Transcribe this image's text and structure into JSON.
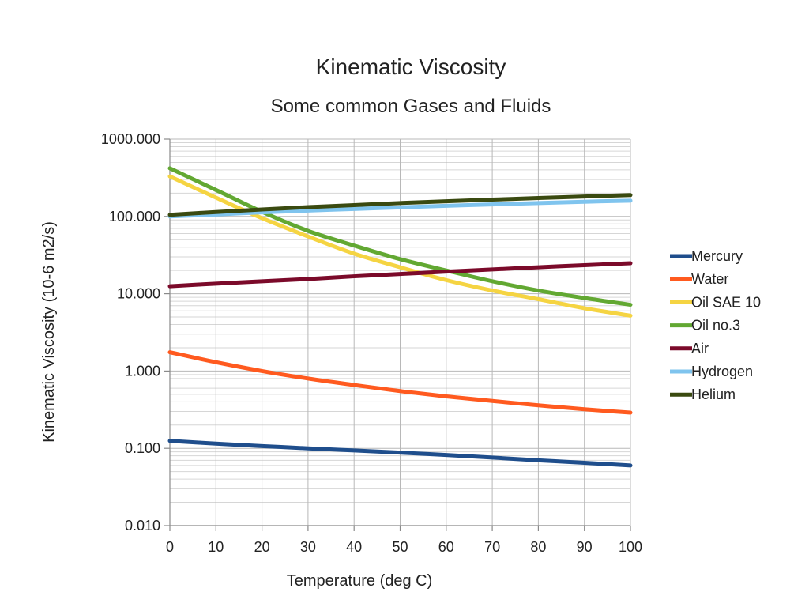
{
  "chart_data": {
    "type": "line",
    "title": "Kinematic Viscosity",
    "subtitle": "Some common Gases and Fluids",
    "xlabel": "Temperature (deg C)",
    "ylabel": "Kinematic Viscosity (10-6 m2/s)",
    "xlim": [
      0,
      100
    ],
    "ylim": [
      0.01,
      1000
    ],
    "yscale": "log",
    "grid": true,
    "legend_position": "right",
    "x_ticks": [
      "0",
      "10",
      "20",
      "30",
      "40",
      "50",
      "60",
      "70",
      "80",
      "90",
      "100"
    ],
    "y_ticks": [
      "0.010",
      "0.100",
      "1.000",
      "10.000",
      "100.000",
      "1000.000"
    ],
    "x": [
      0,
      10,
      20,
      30,
      40,
      50,
      60,
      70,
      80,
      90,
      100
    ],
    "series": [
      {
        "name": "Mercury",
        "color": "#1f4e8c",
        "values": [
          0.125,
          0.115,
          0.107,
          0.1,
          0.094,
          0.088,
          0.082,
          0.076,
          0.07,
          0.065,
          0.06
        ]
      },
      {
        "name": "Water",
        "color": "#ff5a1f",
        "values": [
          1.75,
          1.3,
          1.0,
          0.8,
          0.66,
          0.55,
          0.47,
          0.41,
          0.36,
          0.32,
          0.29
        ]
      },
      {
        "name": "Oil SAE 10",
        "color": "#f5d442",
        "values": [
          330,
          175,
          95,
          55,
          33,
          22,
          15,
          11,
          8.5,
          6.5,
          5.2
        ]
      },
      {
        "name": "Oil no.3",
        "color": "#62a832",
        "values": [
          420,
          220,
          115,
          65,
          42,
          28,
          20,
          14.5,
          11,
          8.8,
          7.2
        ]
      },
      {
        "name": "Air",
        "color": "#7b0a2a",
        "values": [
          12.5,
          13.5,
          14.5,
          15.5,
          16.8,
          18,
          19.3,
          20.6,
          22,
          23.4,
          24.8
        ]
      },
      {
        "name": "Hydrogen",
        "color": "#7fc4ee",
        "values": [
          100,
          106,
          113,
          119,
          125,
          131,
          137,
          143,
          149,
          155,
          160
        ]
      },
      {
        "name": "Helium",
        "color": "#3a4a10",
        "values": [
          105,
          114,
          123,
          132,
          140,
          149,
          157,
          165,
          173,
          181,
          189
        ]
      }
    ]
  }
}
